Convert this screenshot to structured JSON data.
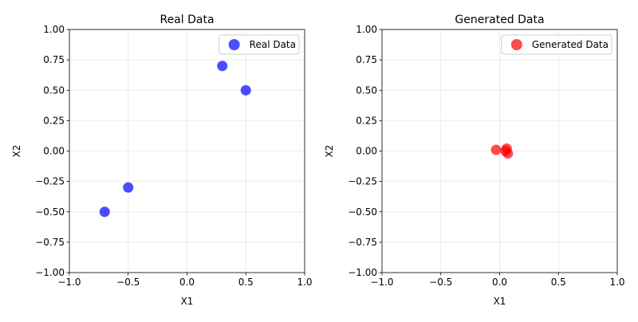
{
  "chart_data": [
    {
      "type": "scatter",
      "title": "Real Data",
      "xlabel": "X1",
      "ylabel": "X2",
      "xlim": [
        -1.0,
        1.0
      ],
      "ylim": [
        -1.0,
        1.0
      ],
      "xticks": [
        -1.0,
        -0.5,
        0.0,
        0.5,
        1.0
      ],
      "xtick_labels": [
        "−1.0",
        "−0.5",
        "0.0",
        "0.5",
        "1.0"
      ],
      "yticks": [
        -1.0,
        -0.75,
        -0.5,
        -0.25,
        0.0,
        0.25,
        0.5,
        0.75,
        1.0
      ],
      "ytick_labels": [
        "−1.00",
        "−0.75",
        "−0.50",
        "−0.25",
        "0.00",
        "0.25",
        "0.50",
        "0.75",
        "1.00"
      ],
      "grid": true,
      "legend": "top-right",
      "series": [
        {
          "name": "Real Data",
          "color": "#0000ff",
          "points": [
            {
              "x": 0.3,
              "y": 0.7
            },
            {
              "x": 0.5,
              "y": 0.5
            },
            {
              "x": -0.5,
              "y": -0.3
            },
            {
              "x": -0.7,
              "y": -0.5
            }
          ]
        }
      ]
    },
    {
      "type": "scatter",
      "title": "Generated Data",
      "xlabel": "X1",
      "ylabel": "X2",
      "xlim": [
        -1.0,
        1.0
      ],
      "ylim": [
        -1.0,
        1.0
      ],
      "xticks": [
        -1.0,
        -0.5,
        0.0,
        0.5,
        1.0
      ],
      "xtick_labels": [
        "−1.0",
        "−0.5",
        "0.0",
        "0.5",
        "1.0"
      ],
      "yticks": [
        -1.0,
        -0.75,
        -0.5,
        -0.25,
        0.0,
        0.25,
        0.5,
        0.75,
        1.0
      ],
      "ytick_labels": [
        "−1.00",
        "−0.75",
        "−0.50",
        "−0.25",
        "0.00",
        "0.25",
        "0.50",
        "0.75",
        "1.00"
      ],
      "grid": true,
      "legend": "top-right",
      "series": [
        {
          "name": "Generated Data",
          "color": "#ff0000",
          "points": [
            {
              "x": -0.03,
              "y": 0.01
            },
            {
              "x": 0.05,
              "y": 0.0
            },
            {
              "x": 0.06,
              "y": 0.02
            },
            {
              "x": 0.07,
              "y": -0.02
            }
          ]
        }
      ]
    }
  ]
}
